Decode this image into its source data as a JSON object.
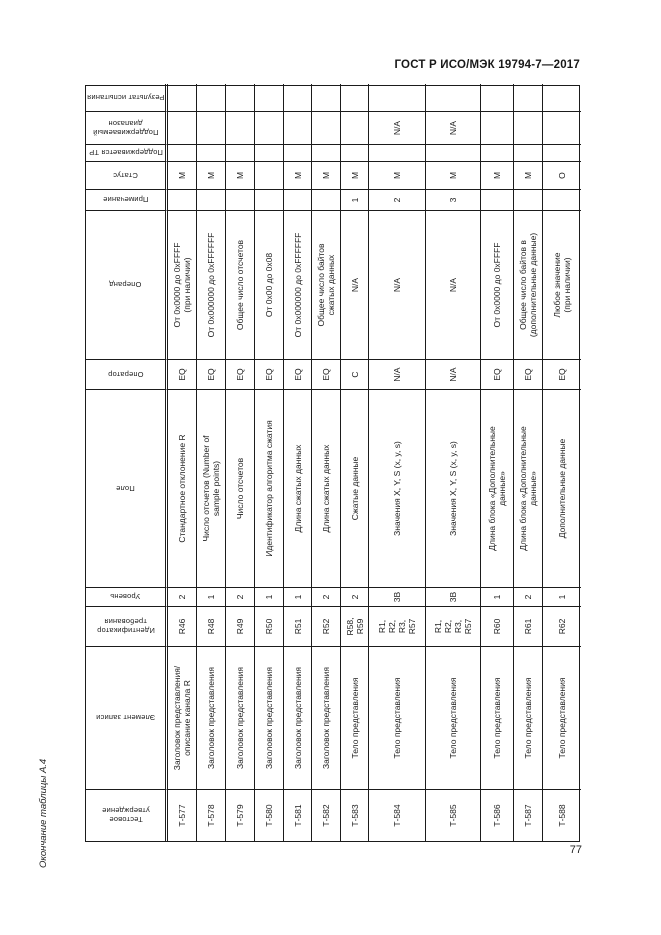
{
  "page": {
    "header": "ГОСТ Р ИСО/МЭК 19794-7—2017",
    "page_number": "77",
    "table_caption": "Окончание таблицы А.4"
  },
  "table": {
    "columns": [
      "Тестовое\nутверждение",
      "Элемент записи",
      "Идентификатор\nтребования",
      "Уровень",
      "Поле",
      "Оператор",
      "Операнд",
      "Примечание",
      "Статус",
      "Поддерживается ТР",
      "Поддерживаемый\nдиапазон",
      "Результат испытания"
    ],
    "rows": [
      [
        "Т-577",
        "Заголовок представления/\nописание канала R",
        "R46",
        "2",
        "Стандартное отклонение R",
        "EQ",
        "От 0x0000 до 0xFFFF\n(при наличии)",
        "",
        "М",
        "",
        "",
        ""
      ],
      [
        "Т-578",
        "Заголовок представления",
        "R48",
        "1",
        "Число отсчетов (Number of\nsample points)",
        "EQ",
        "От 0x000000 до 0xFFFFFF",
        "",
        "М",
        "",
        "",
        ""
      ],
      [
        "Т-579",
        "Заголовок представления",
        "R49",
        "2",
        "Число отсчетов",
        "EQ",
        "Общее число отсчетов",
        "",
        "М",
        "",
        "",
        ""
      ],
      [
        "Т-580",
        "Заголовок представления",
        "R50",
        "1",
        "Идентификатор алгоритма сжатия",
        "EQ",
        "От 0x00 до 0x08",
        "",
        "",
        "",
        "",
        ""
      ],
      [
        "Т-581",
        "Заголовок представления",
        "R51",
        "1",
        "Длина сжатых данных",
        "EQ",
        "От 0x000000 до 0xFFFFFF",
        "",
        "М",
        "",
        "",
        ""
      ],
      [
        "Т-582",
        "Заголовок представления",
        "R52",
        "2",
        "Длина сжатых данных",
        "EQ",
        "Общее число байтов\nсжатых данных",
        "",
        "М",
        "",
        "",
        ""
      ],
      [
        "Т-583",
        "Тело представления",
        "R58,\nR59",
        "2",
        "Сжатые данные",
        "C",
        "N/A",
        "1",
        "М",
        "",
        "",
        ""
      ],
      [
        "Т-584",
        "Тело представления",
        "R1,\nR2,\nR3,\nR57",
        "3В",
        "Значения X, Y, S (x, y, s)",
        "N/A",
        "N/A",
        "2",
        "М",
        "",
        "N/A",
        ""
      ],
      [
        "Т-585",
        "Тело представления",
        "R1,\nR2,\nR3,\nR57",
        "3В",
        "Значения X, Y, S (x, y, s)",
        "N/A",
        "N/A",
        "3",
        "М",
        "",
        "N/A",
        ""
      ],
      [
        "Т-586",
        "Тело представления",
        "R60",
        "1",
        "Длина блока «Дополнительные\nданные»",
        "EQ",
        "От 0x0000 до 0xFFFF",
        "",
        "М",
        "",
        "",
        ""
      ],
      [
        "Т-587",
        "Тело представления",
        "R61",
        "2",
        "Длина блока «Дополнительные\nданные»",
        "EQ",
        "Общее число байтов в\n(дополнительные данные)",
        "",
        "М",
        "",
        "",
        ""
      ],
      [
        "Т-588",
        "Тело представления",
        "R62",
        "1",
        "Дополнительные данные",
        "EQ",
        "Любое значение\n(при наличии)",
        "",
        "О",
        "",
        "",
        ""
      ]
    ]
  }
}
